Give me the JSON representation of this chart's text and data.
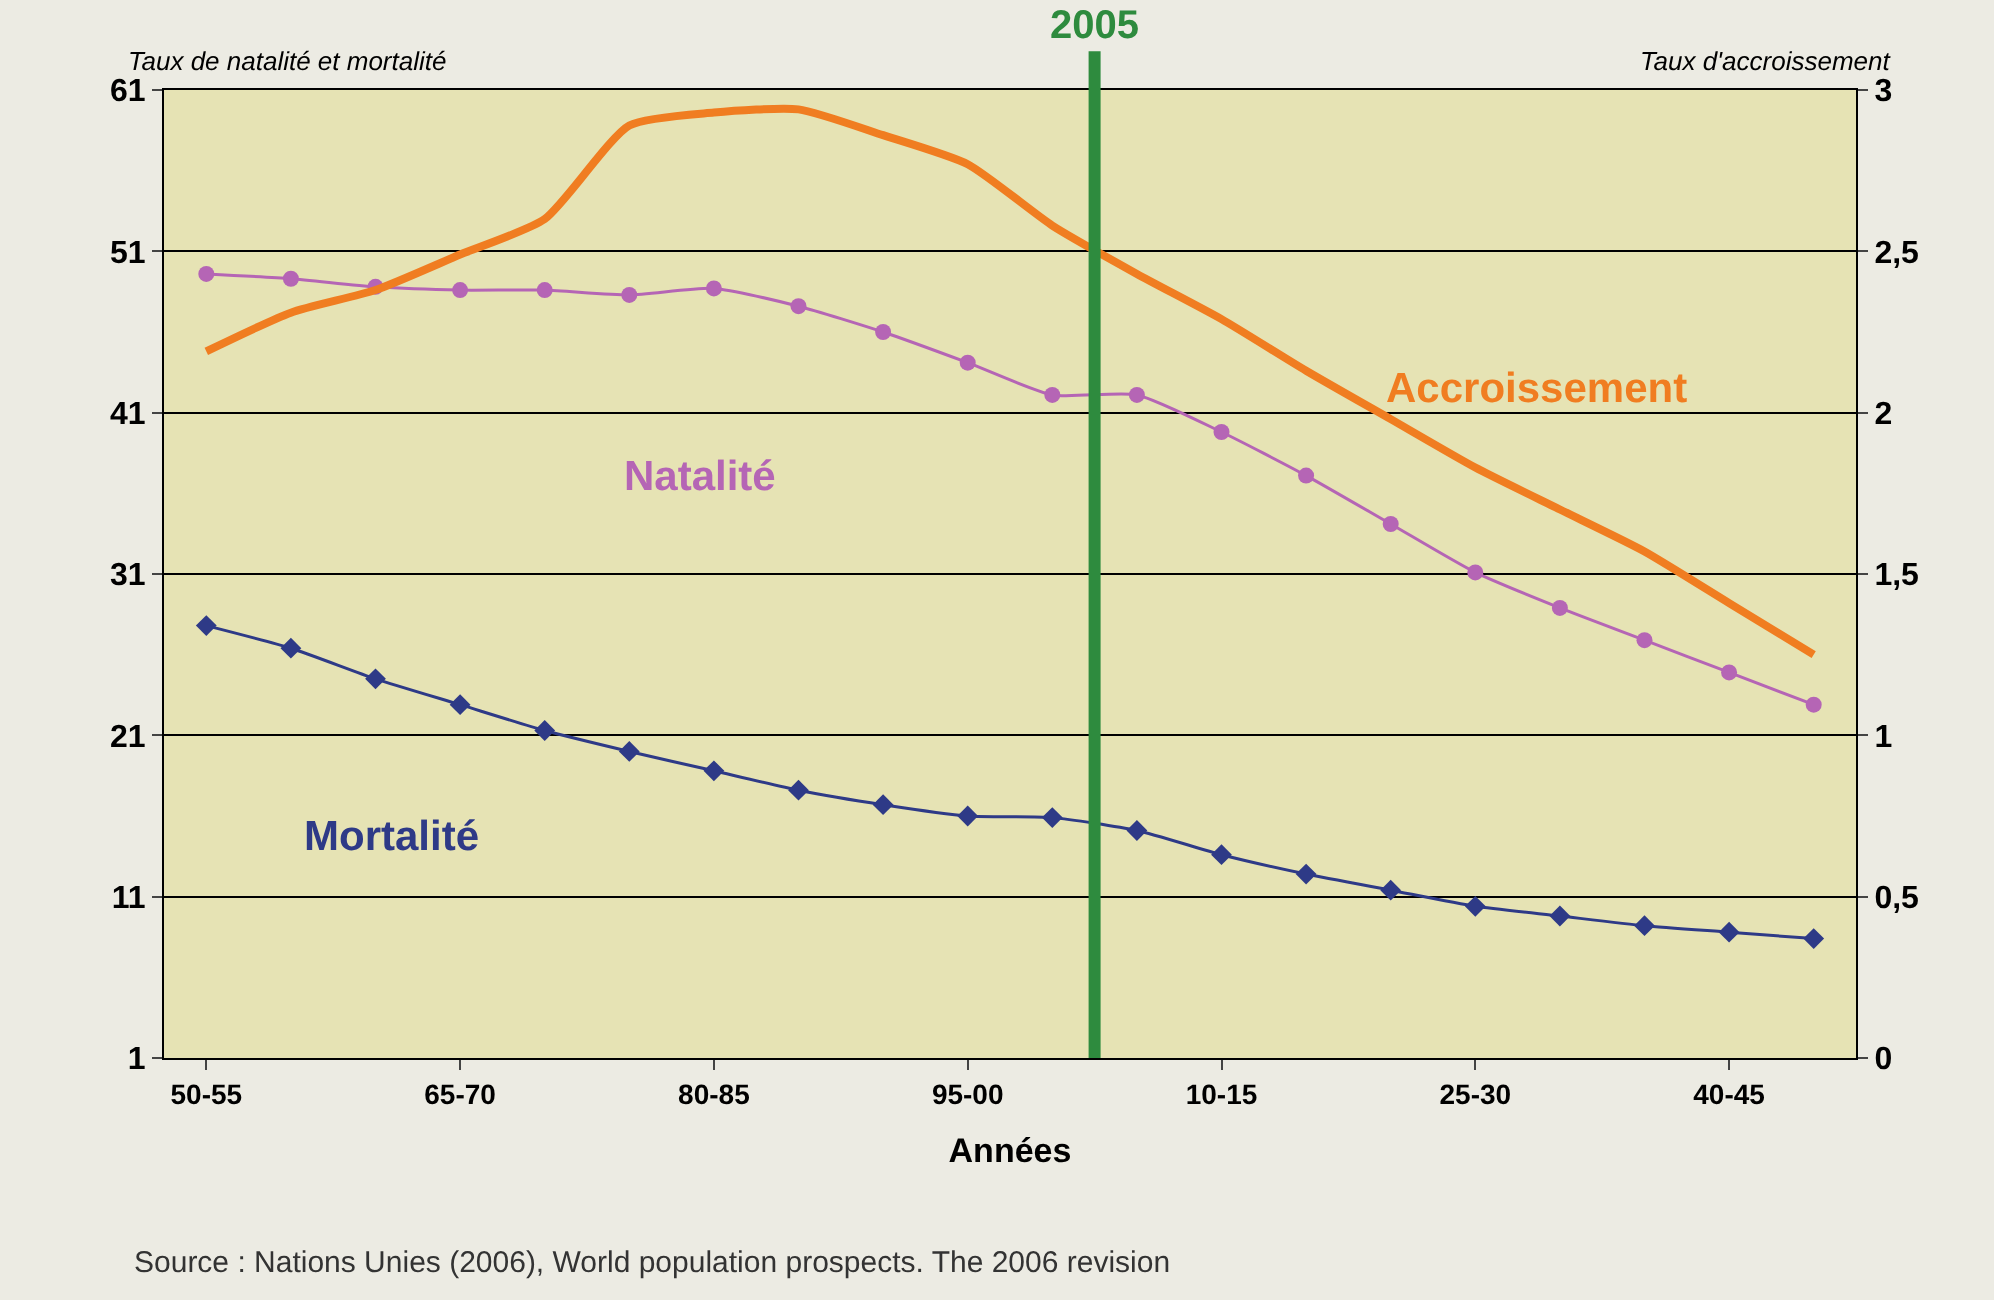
{
  "chart_data": {
    "type": "line",
    "xlabel": "Années",
    "ylabel": "Taux de natalité et mortalité",
    "y2label": "Taux d'accroissement",
    "categories": [
      "50-55",
      null,
      null,
      "65-70",
      null,
      null,
      "80-85",
      null,
      null,
      "95-00",
      null,
      null,
      "10-15",
      null,
      null,
      "25-30",
      null,
      null,
      "40-45",
      null
    ],
    "series": [
      {
        "name": "Natalité",
        "color": "#b565b5",
        "marker": "circle",
        "values": [
          49.6,
          49.3,
          48.8,
          48.6,
          48.6,
          48.3,
          48.7,
          47.6,
          46.0,
          44.1,
          42.1,
          42.1,
          39.8,
          37.1,
          34.1,
          31.1,
          28.9,
          26.9,
          24.9,
          22.9
        ]
      },
      {
        "name": "Mortalité",
        "color": "#2e3a87",
        "marker": "diamond",
        "values": [
          27.8,
          26.4,
          24.5,
          22.9,
          21.3,
          20.0,
          18.8,
          17.6,
          16.7,
          16.0,
          15.9,
          15.1,
          13.6,
          12.4,
          11.4,
          10.4,
          9.8,
          9.2,
          8.8,
          8.4
        ]
      },
      {
        "name": "Accroissement",
        "color": "#f07d21",
        "marker": "none",
        "axis": "y2",
        "values": [
          2.19,
          2.31,
          2.38,
          2.49,
          2.6,
          2.89,
          2.93,
          2.94,
          2.86,
          2.77,
          2.58,
          2.43,
          2.29,
          2.13,
          1.98,
          1.83,
          1.7,
          1.57,
          1.41,
          1.25
        ]
      }
    ],
    "ylim": [
      1,
      61
    ],
    "yticks": [
      1,
      11,
      21,
      31,
      41,
      51,
      61
    ],
    "y2lim": [
      0,
      3
    ],
    "y2ticks": [
      0,
      {
        "value": 0.5,
        "label": "0,5"
      },
      1,
      {
        "value": 1.5,
        "label": "1,5"
      },
      2,
      {
        "value": 2.5,
        "label": "2,5"
      },
      3
    ],
    "grid": "y",
    "legend": false,
    "line_style": "solid",
    "ref_lines": [
      {
        "axis": "x",
        "label": "2005",
        "color": "#2e8b3e"
      }
    ],
    "annotations": [
      "Source : Nations Unies (2006), World population prospects. The 2006 revision"
    ]
  }
}
